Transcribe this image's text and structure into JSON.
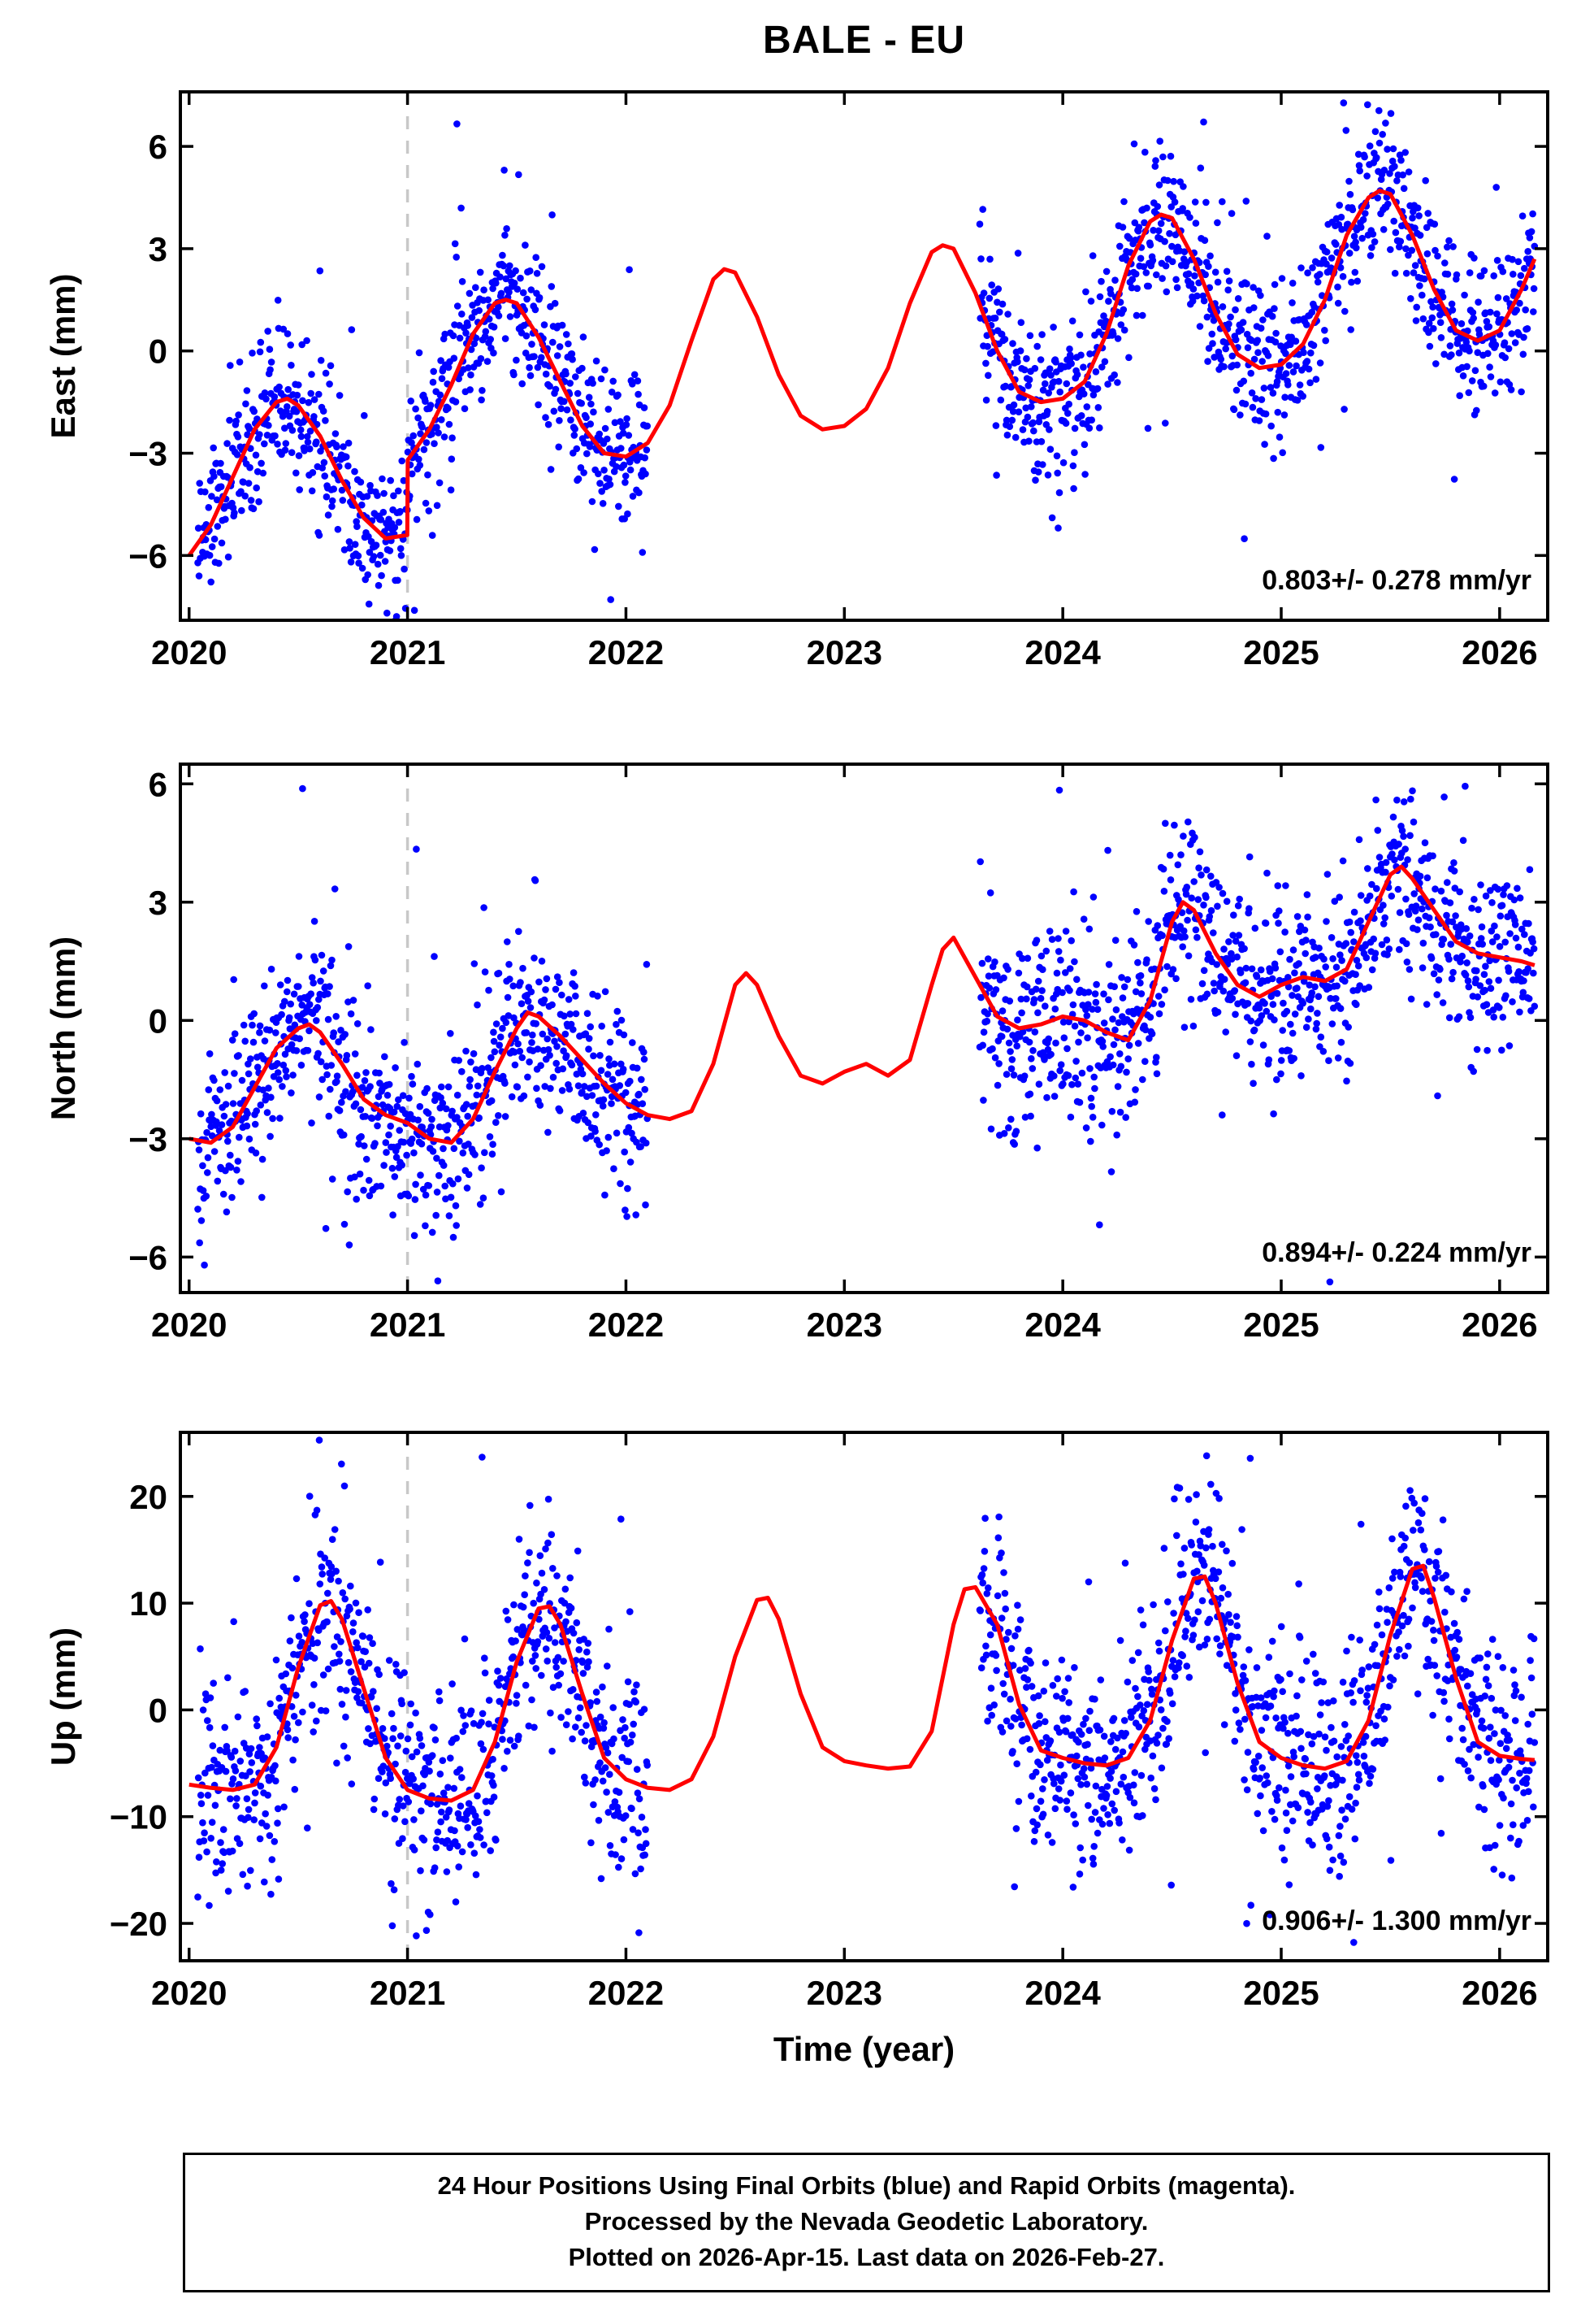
{
  "title": "BALE - EU",
  "xaxis": {
    "label": "Time (year)",
    "ticks": [
      2020,
      2021,
      2022,
      2023,
      2024,
      2025,
      2026
    ],
    "xlim": [
      2019.96,
      2026.22
    ],
    "event_line": 2021.0
  },
  "colors": {
    "points": "#0000FF",
    "model": "#FF0000",
    "event_line": "#C8C8C8",
    "frame": "#000000"
  },
  "chart_data": [
    {
      "type": "scatter",
      "name": "east",
      "ylabel": "East (mm)",
      "rate_label": "0.803+/- 0.278 mm/yr",
      "ylim": [
        -7.9,
        7.6
      ],
      "yticks": [
        -6,
        -3,
        0,
        3,
        6
      ],
      "model_curve": {
        "t": [
          2020.0,
          2020.1,
          2020.2,
          2020.3,
          2020.4,
          2020.45,
          2020.5,
          2020.6,
          2020.7,
          2020.8,
          2020.9,
          2020.999,
          2021.001,
          2021.1,
          2021.2,
          2021.3,
          2021.4,
          2021.45,
          2021.5,
          2021.6,
          2021.7,
          2021.8,
          2021.9,
          2022.0,
          2022.1,
          2022.2,
          2022.3,
          2022.4,
          2022.45,
          2022.5,
          2022.6,
          2022.7,
          2022.8,
          2022.9,
          2023.0,
          2023.1,
          2023.2,
          2023.3,
          2023.4,
          2023.45,
          2023.5,
          2023.6,
          2023.7,
          2023.8,
          2023.9,
          2024.0,
          2024.1,
          2024.2,
          2024.3,
          2024.4,
          2024.45,
          2024.5,
          2024.6,
          2024.7,
          2024.8,
          2024.9,
          2025.0,
          2025.1,
          2025.2,
          2025.3,
          2025.4,
          2025.45,
          2025.5,
          2025.6,
          2025.7,
          2025.8,
          2025.9,
          2026.0,
          2026.1,
          2026.16
        ],
        "v": [
          -6.0,
          -5.1,
          -3.7,
          -2.3,
          -1.5,
          -1.4,
          -1.6,
          -2.5,
          -3.8,
          -4.9,
          -5.5,
          -5.4,
          -3.2,
          -2.3,
          -1.0,
          0.5,
          1.4,
          1.5,
          1.4,
          0.4,
          -0.9,
          -2.2,
          -3.0,
          -3.1,
          -2.7,
          -1.6,
          0.3,
          2.1,
          2.4,
          2.3,
          1.0,
          -0.7,
          -1.9,
          -2.3,
          -2.2,
          -1.7,
          -0.5,
          1.4,
          2.9,
          3.1,
          3.0,
          1.7,
          0.0,
          -1.2,
          -1.5,
          -1.4,
          -0.9,
          0.5,
          2.5,
          3.8,
          4.0,
          3.9,
          2.7,
          1.1,
          -0.1,
          -0.5,
          -0.4,
          0.2,
          1.5,
          3.4,
          4.5,
          4.7,
          4.6,
          3.4,
          1.8,
          0.6,
          0.3,
          0.6,
          1.8,
          2.7
        ]
      },
      "scatter": {
        "segments": [
          [
            2020.04,
            2022.1
          ],
          [
            2023.62,
            2026.16
          ]
        ],
        "sigma": 1.1,
        "seed": 101,
        "points_per_year": 365,
        "outlier_frac": 0.07,
        "outlier_scale": 2.3
      }
    },
    {
      "type": "scatter",
      "name": "north",
      "ylabel": "North (mm)",
      "rate_label": "0.894+/- 0.224 mm/yr",
      "ylim": [
        -6.9,
        6.5
      ],
      "yticks": [
        -6,
        -3,
        0,
        3,
        6
      ],
      "model_curve": {
        "t": [
          2020.0,
          2020.1,
          2020.2,
          2020.3,
          2020.4,
          2020.5,
          2020.55,
          2020.6,
          2020.7,
          2020.8,
          2020.9,
          2021.0,
          2021.1,
          2021.2,
          2021.3,
          2021.4,
          2021.5,
          2021.55,
          2021.6,
          2021.7,
          2021.8,
          2021.9,
          2022.0,
          2022.1,
          2022.2,
          2022.3,
          2022.4,
          2022.5,
          2022.55,
          2022.6,
          2022.7,
          2022.8,
          2022.9,
          2023.0,
          2023.1,
          2023.2,
          2023.3,
          2023.4,
          2023.45,
          2023.5,
          2023.6,
          2023.7,
          2023.8,
          2023.9,
          2024.0,
          2024.1,
          2024.2,
          2024.3,
          2024.4,
          2024.5,
          2024.55,
          2024.6,
          2024.7,
          2024.8,
          2024.9,
          2025.0,
          2025.1,
          2025.2,
          2025.3,
          2025.4,
          2025.5,
          2025.55,
          2025.6,
          2025.7,
          2025.8,
          2025.9,
          2026.0,
          2026.1,
          2026.16
        ],
        "v": [
          -3.0,
          -3.1,
          -2.7,
          -1.7,
          -0.7,
          -0.2,
          -0.1,
          -0.3,
          -1.1,
          -2.0,
          -2.4,
          -2.6,
          -3.0,
          -3.1,
          -2.5,
          -1.3,
          -0.2,
          0.2,
          0.1,
          -0.4,
          -1.0,
          -1.6,
          -2.1,
          -2.4,
          -2.5,
          -2.3,
          -1.1,
          0.9,
          1.2,
          0.9,
          -0.4,
          -1.4,
          -1.6,
          -1.3,
          -1.1,
          -1.4,
          -1.0,
          0.9,
          1.8,
          2.1,
          1.1,
          0.1,
          -0.2,
          -0.1,
          0.1,
          0.0,
          -0.3,
          -0.5,
          0.5,
          2.5,
          3.0,
          2.8,
          1.7,
          0.9,
          0.6,
          0.9,
          1.1,
          1.0,
          1.3,
          2.5,
          3.7,
          3.9,
          3.6,
          2.8,
          2.0,
          1.7,
          1.6,
          1.5,
          1.4
        ]
      },
      "scatter": {
        "segments": [
          [
            2020.04,
            2022.1
          ],
          [
            2023.62,
            2026.16
          ]
        ],
        "sigma": 1.15,
        "seed": 202,
        "points_per_year": 365,
        "outlier_frac": 0.07,
        "outlier_scale": 2.3
      }
    },
    {
      "type": "scatter",
      "name": "up",
      "ylabel": "Up (mm)",
      "rate_label": "0.906+/- 1.300 mm/yr",
      "ylim": [
        -23.5,
        26.0
      ],
      "yticks": [
        -20,
        -10,
        0,
        10,
        20
      ],
      "model_curve": {
        "t": [
          2020.0,
          2020.1,
          2020.2,
          2020.3,
          2020.4,
          2020.5,
          2020.6,
          2020.65,
          2020.7,
          2020.8,
          2020.9,
          2021.0,
          2021.1,
          2021.2,
          2021.3,
          2021.4,
          2021.5,
          2021.6,
          2021.65,
          2021.7,
          2021.8,
          2021.9,
          2022.0,
          2022.1,
          2022.2,
          2022.3,
          2022.4,
          2022.5,
          2022.6,
          2022.65,
          2022.7,
          2022.8,
          2022.9,
          2023.0,
          2023.1,
          2023.2,
          2023.3,
          2023.4,
          2023.5,
          2023.55,
          2023.6,
          2023.7,
          2023.8,
          2023.9,
          2024.0,
          2024.1,
          2024.2,
          2024.3,
          2024.4,
          2024.5,
          2024.6,
          2024.65,
          2024.7,
          2024.8,
          2024.9,
          2025.0,
          2025.1,
          2025.2,
          2025.3,
          2025.4,
          2025.5,
          2025.6,
          2025.65,
          2025.7,
          2025.8,
          2025.9,
          2026.0,
          2026.1,
          2026.16
        ],
        "v": [
          -7.0,
          -7.3,
          -7.5,
          -7.0,
          -3.5,
          4.0,
          9.8,
          10.2,
          8.5,
          2.0,
          -4.5,
          -7.5,
          -8.3,
          -8.5,
          -7.5,
          -3.0,
          4.5,
          9.5,
          9.7,
          8.0,
          1.5,
          -4.5,
          -6.5,
          -7.3,
          -7.5,
          -6.5,
          -2.5,
          5.0,
          10.3,
          10.5,
          8.5,
          1.5,
          -3.5,
          -4.8,
          -5.2,
          -5.5,
          -5.3,
          -2.0,
          8.0,
          11.3,
          11.5,
          8.0,
          0.5,
          -3.8,
          -4.5,
          -5.0,
          -5.2,
          -4.5,
          -1.0,
          6.5,
          12.3,
          12.5,
          10.0,
          2.5,
          -3.0,
          -4.5,
          -5.2,
          -5.5,
          -4.8,
          -1.0,
          7.0,
          13.2,
          13.5,
          10.5,
          3.0,
          -3.0,
          -4.3,
          -4.6,
          -4.7
        ]
      },
      "scatter": {
        "segments": [
          [
            2020.04,
            2022.1
          ],
          [
            2023.62,
            2026.16
          ]
        ],
        "sigma": 4.8,
        "seed": 303,
        "points_per_year": 365,
        "outlier_frac": 0.07,
        "outlier_scale": 2.3
      }
    }
  ],
  "footer": {
    "line1": "24 Hour Positions Using Final Orbits (blue) and Rapid Orbits (magenta).",
    "line2": "Processed by the Nevada Geodetic Laboratory.",
    "line3": "Plotted on 2026-Apr-15. Last data on 2026-Feb-27."
  }
}
